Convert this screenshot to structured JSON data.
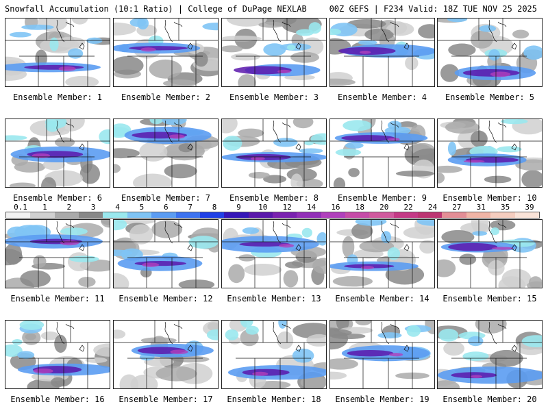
{
  "header": {
    "left": "Snowfall Accumulation (10:1 Ratio) | College of DuPage NEXLAB",
    "right": "00Z GEFS | F234 Valid: 18Z TUE NOV 25 2025"
  },
  "label_prefix": "Ensemble Member: ",
  "members": [
    {
      "id": 1,
      "label": "Ensemble Member: 1"
    },
    {
      "id": 2,
      "label": "Ensemble Member: 2"
    },
    {
      "id": 3,
      "label": "Ensemble Member: 3"
    },
    {
      "id": 4,
      "label": "Ensemble Member: 4"
    },
    {
      "id": 5,
      "label": "Ensemble Member: 5"
    },
    {
      "id": 6,
      "label": "Ensemble Member: 6"
    },
    {
      "id": 7,
      "label": "Ensemble Member: 7"
    },
    {
      "id": 8,
      "label": "Ensemble Member: 8"
    },
    {
      "id": 9,
      "label": "Ensemble Member: 9"
    },
    {
      "id": 10,
      "label": "Ensemble Member: 10"
    },
    {
      "id": 11,
      "label": "Ensemble Member: 11"
    },
    {
      "id": 12,
      "label": "Ensemble Member: 12"
    },
    {
      "id": 13,
      "label": "Ensemble Member: 13"
    },
    {
      "id": 14,
      "label": "Ensemble Member: 14"
    },
    {
      "id": 15,
      "label": "Ensemble Member: 15"
    },
    {
      "id": 16,
      "label": "Ensemble Member: 16"
    },
    {
      "id": 17,
      "label": "Ensemble Member: 17"
    },
    {
      "id": 18,
      "label": "Ensemble Member: 18"
    },
    {
      "id": 19,
      "label": "Ensemble Member: 19"
    },
    {
      "id": 20,
      "label": "Ensemble Member: 20"
    }
  ],
  "colorbar": {
    "ticks": [
      "0.1",
      "1",
      "2",
      "3",
      "4",
      "5",
      "6",
      "7",
      "8",
      "9",
      "10",
      "12",
      "14",
      "16",
      "18",
      "20",
      "22",
      "24",
      "27",
      "31",
      "35",
      "39"
    ],
    "colors": [
      "#f2f2f2",
      "#d0d0d0",
      "#aaaaaa",
      "#888888",
      "#9ae8ee",
      "#7fc4f5",
      "#5b9cf2",
      "#3d73f0",
      "#2040e6",
      "#3516b8",
      "#5a18ab",
      "#7a22b0",
      "#9230b8",
      "#b040bc",
      "#c64ca8",
      "#d05a9e",
      "#c43a86",
      "#bc3572",
      "#e38e96",
      "#f0b4a6",
      "#f5cdbf",
      "#fae3d8"
    ]
  }
}
